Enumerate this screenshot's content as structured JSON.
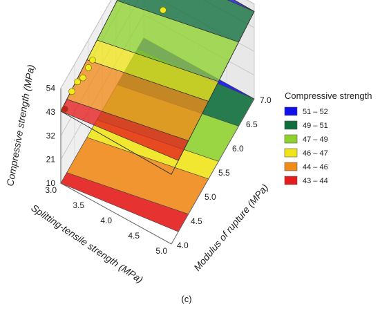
{
  "chart_data": {
    "type": "surface3d",
    "panel_label": "(c)",
    "xlabel": "Splitting-tensile strength (MPa)",
    "ylabel": "Modulus of rupture (MPa)",
    "zlabel": "Compressive strength (MPa)",
    "x_ticks": [
      "3.0",
      "3.5",
      "4.0",
      "4.5",
      "5.0"
    ],
    "y_ticks": [
      "4.0",
      "4.5",
      "5.0",
      "5.5",
      "6.0",
      "6.5",
      "7.0"
    ],
    "z_ticks": [
      "10",
      "21",
      "32",
      "43",
      "54"
    ],
    "xlim": [
      3.0,
      5.0
    ],
    "ylim": [
      4.0,
      7.0
    ],
    "zlim": [
      10,
      54
    ],
    "legend": {
      "title": "Compressive  strength",
      "position": "right",
      "entries": [
        {
          "label": "51 – 52",
          "color": "#1010e8"
        },
        {
          "label": "49 – 51",
          "color": "#0f6e3c"
        },
        {
          "label": "47 – 49",
          "color": "#8fd230"
        },
        {
          "label": "46 – 47",
          "color": "#f0e41b"
        },
        {
          "label": "44 – 46",
          "color": "#f08a19"
        },
        {
          "label": "43 – 44",
          "color": "#e41c1c"
        }
      ]
    },
    "surface_bands": [
      {
        "range": [
          43,
          44
        ],
        "color": "#e41c1c"
      },
      {
        "range": [
          44,
          46
        ],
        "color": "#f08a19"
      },
      {
        "range": [
          46,
          47
        ],
        "color": "#f0e41b"
      },
      {
        "range": [
          47,
          49
        ],
        "color": "#8fd230"
      },
      {
        "range": [
          49,
          51
        ],
        "color": "#0f6e3c"
      },
      {
        "range": [
          51,
          52
        ],
        "color": "#1010e8"
      }
    ],
    "points": [
      {
        "x": 3.05,
        "y": 4.05,
        "z": 44.0
      },
      {
        "x": 3.05,
        "y": 4.3,
        "z": 46.5
      },
      {
        "x": 3.05,
        "y": 4.5,
        "z": 46.5
      },
      {
        "x": 3.1,
        "y": 4.6,
        "z": 46.8
      },
      {
        "x": 3.1,
        "y": 4.8,
        "z": 47.0
      },
      {
        "x": 3.1,
        "y": 4.95,
        "z": 47.2
      },
      {
        "x": 3.7,
        "y": 6.3,
        "z": 48.5
      },
      {
        "x": 3.35,
        "y": 6.5,
        "z": 50.0
      },
      {
        "x": 3.3,
        "y": 6.6,
        "z": 50.2
      },
      {
        "x": 3.2,
        "y": 6.8,
        "z": 51.0
      },
      {
        "x": 3.05,
        "y": 7.0,
        "z": 52.0
      }
    ]
  }
}
